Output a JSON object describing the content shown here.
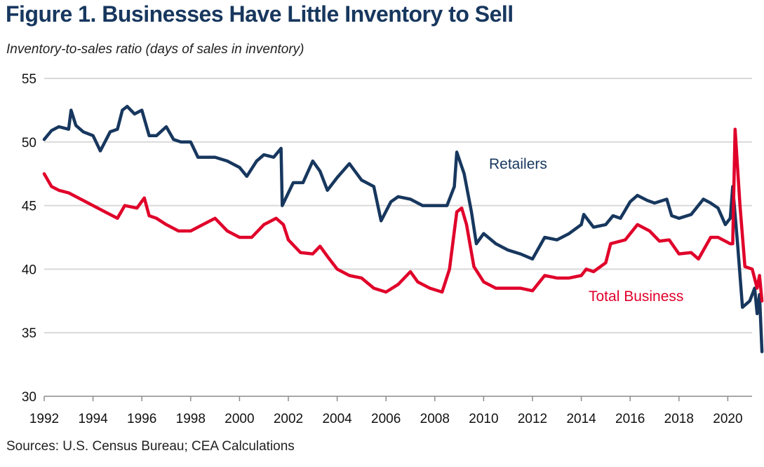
{
  "chart_data": {
    "type": "line",
    "title": "Figure 1. Businesses Have Little Inventory to Sell",
    "subtitle": "Inventory-to-sales ratio (days of sales in inventory)",
    "source": "Sources: U.S. Census Bureau; CEA Calculations",
    "xlabel": "",
    "ylabel": "Inventory-to-sales ratio (days of sales in inventory)",
    "xlim": [
      1992,
      2021.4
    ],
    "ylim": [
      30,
      55
    ],
    "yticks": [
      30,
      35,
      40,
      45,
      50,
      55
    ],
    "xticks": [
      1992,
      1994,
      1996,
      1998,
      2000,
      2002,
      2004,
      2006,
      2008,
      2010,
      2012,
      2014,
      2016,
      2018,
      2020
    ],
    "grid": true,
    "legend": "inline-labels",
    "series": [
      {
        "name": "Retailers",
        "color": "#17375e",
        "label_position": "upper-middle",
        "x": [
          1992.0,
          1992.3,
          1992.6,
          1993.0,
          1993.1,
          1993.3,
          1993.6,
          1994.0,
          1994.3,
          1994.7,
          1995.0,
          1995.2,
          1995.4,
          1995.7,
          1996.0,
          1996.3,
          1996.6,
          1997.0,
          1997.3,
          1997.6,
          1998.0,
          1998.3,
          1998.6,
          1999.0,
          1999.5,
          2000.0,
          2000.3,
          2000.7,
          2001.0,
          2001.4,
          2001.7,
          2001.75,
          2002.2,
          2002.6,
          2003.0,
          2003.3,
          2003.6,
          2004.0,
          2004.5,
          2005.0,
          2005.5,
          2005.8,
          2006.2,
          2006.5,
          2007.0,
          2007.5,
          2008.0,
          2008.5,
          2008.8,
          2008.9,
          2009.2,
          2009.5,
          2009.7,
          2010.0,
          2010.5,
          2011.0,
          2011.5,
          2012.0,
          2012.5,
          2013.0,
          2013.5,
          2014.0,
          2014.1,
          2014.5,
          2015.0,
          2015.3,
          2015.6,
          2016.0,
          2016.3,
          2016.7,
          2017.0,
          2017.5,
          2017.7,
          2018.0,
          2018.5,
          2019.0,
          2019.3,
          2019.6,
          2019.9,
          2020.1,
          2020.2,
          2020.4,
          2020.6,
          2020.9,
          2021.1,
          2021.2,
          2021.3,
          2021.4
        ],
        "values": [
          50.2,
          50.9,
          51.2,
          51.0,
          52.5,
          51.3,
          50.8,
          50.5,
          49.3,
          50.8,
          51.0,
          52.5,
          52.8,
          52.2,
          52.5,
          50.5,
          50.5,
          51.2,
          50.2,
          50.0,
          50.0,
          48.8,
          48.8,
          48.8,
          48.5,
          48.0,
          47.3,
          48.5,
          49.0,
          48.8,
          49.5,
          45.0,
          46.8,
          46.8,
          48.5,
          47.7,
          46.2,
          47.2,
          48.3,
          47.0,
          46.5,
          43.8,
          45.3,
          45.7,
          45.5,
          45.0,
          45.0,
          45.0,
          46.5,
          49.2,
          47.5,
          44.5,
          42.0,
          42.8,
          42.0,
          41.5,
          41.2,
          40.8,
          42.5,
          42.3,
          42.8,
          43.5,
          44.3,
          43.3,
          43.5,
          44.2,
          44.0,
          45.3,
          45.8,
          45.4,
          45.2,
          45.5,
          44.2,
          44.0,
          44.3,
          45.5,
          45.2,
          44.8,
          43.5,
          44.0,
          46.5,
          42.0,
          37.0,
          37.5,
          38.5,
          36.5,
          38.0,
          33.5
        ]
      },
      {
        "name": "Total Business",
        "color": "#e0002a",
        "label_position": "lower-right",
        "x": [
          1992.0,
          1992.3,
          1992.6,
          1993.0,
          1993.5,
          1994.0,
          1994.5,
          1995.0,
          1995.3,
          1995.8,
          1996.1,
          1996.3,
          1996.6,
          1997.0,
          1997.5,
          1998.0,
          1998.5,
          1999.0,
          1999.5,
          2000.0,
          2000.5,
          2001.0,
          2001.5,
          2001.8,
          2002.0,
          2002.5,
          2003.0,
          2003.3,
          2003.6,
          2004.0,
          2004.5,
          2005.0,
          2005.5,
          2006.0,
          2006.5,
          2007.0,
          2007.3,
          2007.8,
          2008.3,
          2008.6,
          2008.9,
          2009.1,
          2009.3,
          2009.6,
          2010.0,
          2010.5,
          2011.0,
          2011.5,
          2012.0,
          2012.5,
          2013.0,
          2013.5,
          2014.0,
          2014.2,
          2014.5,
          2015.0,
          2015.2,
          2015.8,
          2016.3,
          2016.8,
          2017.2,
          2017.6,
          2018.0,
          2018.5,
          2018.8,
          2019.3,
          2019.6,
          2020.1,
          2020.2,
          2020.3,
          2020.5,
          2020.7,
          2021.0,
          2021.2,
          2021.3,
          2021.4
        ],
        "values": [
          47.5,
          46.5,
          46.2,
          46.0,
          45.5,
          45.0,
          44.5,
          44.0,
          45.0,
          44.8,
          45.6,
          44.2,
          44.0,
          43.5,
          43.0,
          43.0,
          43.5,
          44.0,
          43.0,
          42.5,
          42.5,
          43.5,
          44.0,
          43.5,
          42.3,
          41.3,
          41.2,
          41.8,
          41.0,
          40.0,
          39.5,
          39.3,
          38.5,
          38.2,
          38.8,
          39.8,
          39.0,
          38.5,
          38.2,
          40.0,
          44.5,
          44.8,
          43.5,
          40.2,
          39.0,
          38.5,
          38.5,
          38.5,
          38.3,
          39.5,
          39.3,
          39.3,
          39.5,
          40.0,
          39.8,
          40.5,
          42.0,
          42.3,
          43.5,
          43.0,
          42.2,
          42.3,
          41.2,
          41.3,
          40.8,
          42.5,
          42.5,
          42.0,
          42.0,
          51.0,
          45.0,
          40.2,
          40.0,
          38.5,
          39.5,
          37.5
        ]
      }
    ]
  }
}
